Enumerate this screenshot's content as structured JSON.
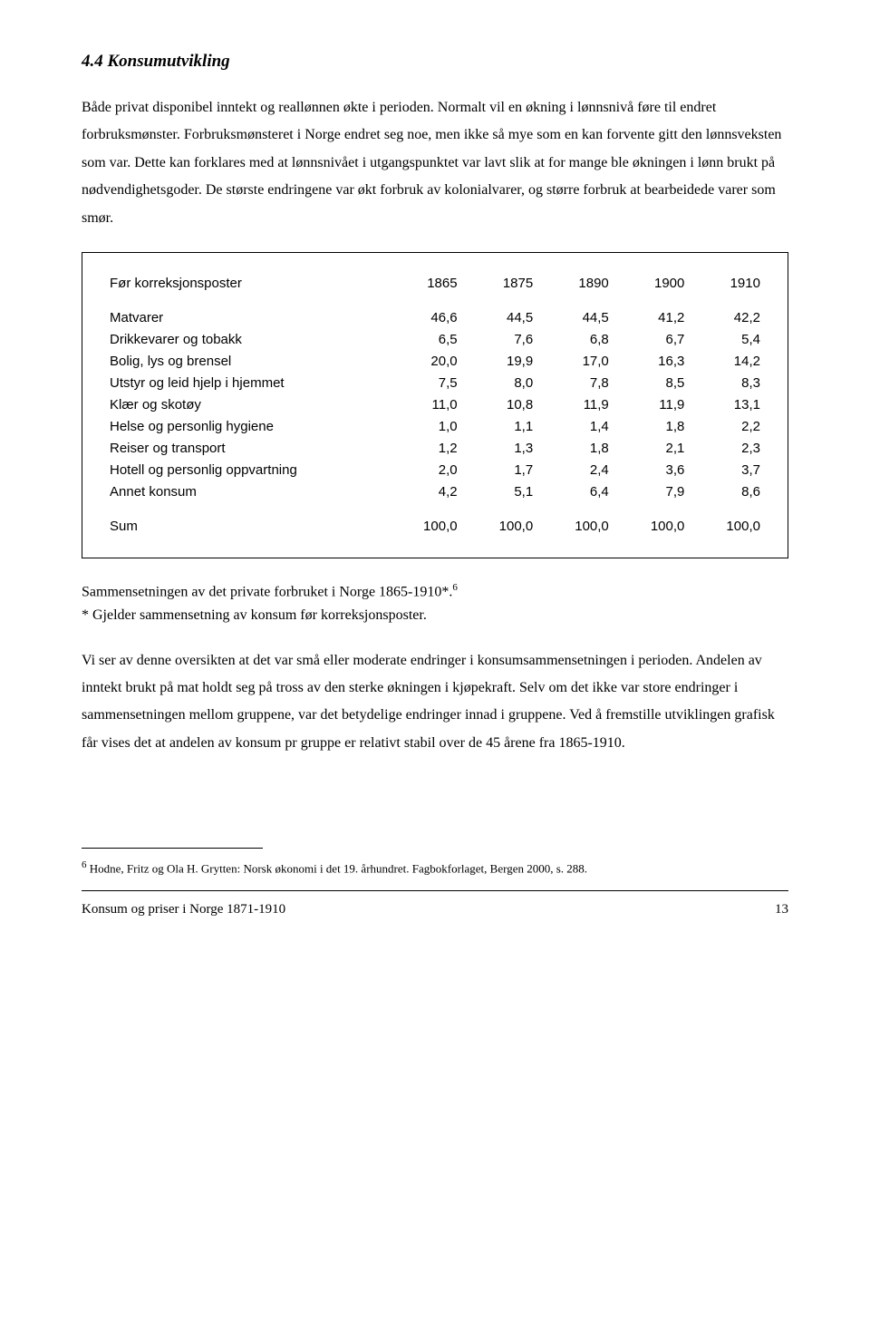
{
  "heading": "4.4 Konsumutvikling",
  "para1": "Både privat disponibel inntekt og reallønnen økte i perioden. Normalt vil en økning i lønnsnivå føre til endret forbruksmønster. Forbruksmønsteret i Norge endret seg noe, men ikke så mye som en kan forvente gitt den lønnsveksten som var. Dette kan forklares med at lønnsnivået i utgangspunktet var lavt slik at for mange ble økningen i lønn brukt på nødvendighetsgoder. De største endringene var økt forbruk av kolonialvarer, og større forbruk at bearbeidede varer som smør.",
  "table": {
    "header_label": "Før korreksjonsposter",
    "years": [
      "1865",
      "1875",
      "1890",
      "1900",
      "1910"
    ],
    "rows": [
      {
        "label": "Matvarer",
        "vals": [
          "46,6",
          "44,5",
          "44,5",
          "41,2",
          "42,2"
        ]
      },
      {
        "label": "Drikkevarer og tobakk",
        "vals": [
          "6,5",
          "7,6",
          "6,8",
          "6,7",
          "5,4"
        ]
      },
      {
        "label": "Bolig, lys og brensel",
        "vals": [
          "20,0",
          "19,9",
          "17,0",
          "16,3",
          "14,2"
        ]
      },
      {
        "label": "Utstyr og leid hjelp i hjemmet",
        "vals": [
          "7,5",
          "8,0",
          "7,8",
          "8,5",
          "8,3"
        ]
      },
      {
        "label": "Klær og skotøy",
        "vals": [
          "11,0",
          "10,8",
          "11,9",
          "11,9",
          "13,1"
        ]
      },
      {
        "label": "Helse og personlig hygiene",
        "vals": [
          "1,0",
          "1,1",
          "1,4",
          "1,8",
          "2,2"
        ]
      },
      {
        "label": "Reiser og transport",
        "vals": [
          "1,2",
          "1,3",
          "1,8",
          "2,1",
          "2,3"
        ]
      },
      {
        "label": "Hotell og personlig oppvartning",
        "vals": [
          "2,0",
          "1,7",
          "2,4",
          "3,6",
          "3,7"
        ]
      },
      {
        "label": "Annet konsum",
        "vals": [
          "4,2",
          "5,1",
          "6,4",
          "7,9",
          "8,6"
        ]
      }
    ],
    "sum_label": "Sum",
    "sum_vals": [
      "100,0",
      "100,0",
      "100,0",
      "100,0",
      "100,0"
    ]
  },
  "caption_line1": "Sammensetningen av det private forbruket i Norge 1865-1910*.",
  "caption_sup": "6",
  "caption_line2": "* Gjelder sammensetning av konsum før korreksjonsposter.",
  "para2": "Vi ser av denne oversikten at det var små eller moderate endringer i konsumsammensetningen i perioden. Andelen av inntekt brukt på mat holdt seg på tross av den sterke økningen i kjøpekraft. Selv om det ikke var store endringer i sammensetningen mellom gruppene, var det betydelige endringer innad i gruppene. Ved å fremstille utviklingen grafisk får vises det at andelen av konsum pr gruppe er relativt stabil over de 45 årene fra 1865-1910.",
  "footnote_marker": "6",
  "footnote_text": " Hodne, Fritz og Ola H. Grytten: Norsk økonomi i det 19. århundret. Fagbokforlaget, Bergen 2000, s. 288.",
  "footer_title": "Konsum og priser i Norge 1871-1910",
  "footer_page": "13"
}
